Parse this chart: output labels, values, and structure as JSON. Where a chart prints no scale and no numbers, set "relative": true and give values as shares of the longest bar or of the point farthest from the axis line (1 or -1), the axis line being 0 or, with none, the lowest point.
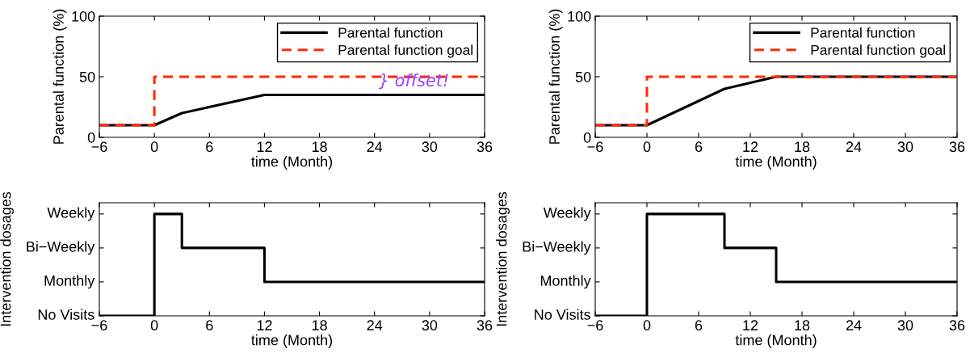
{
  "chart_data": [
    {
      "type": "line",
      "xlabel": "time (Month)",
      "ylabel": "Parental function (%)",
      "xlim": [
        -6,
        36
      ],
      "ylim": [
        0,
        100
      ],
      "xticks": [
        -6,
        0,
        6,
        12,
        18,
        24,
        30,
        36
      ],
      "yticks": [
        0,
        50,
        100
      ],
      "grid": false,
      "legend": "top right",
      "series": [
        {
          "name": "Parental function",
          "color": "#000000",
          "x": [
            -6,
            0,
            3,
            12,
            36
          ],
          "values": [
            10,
            10,
            20,
            35,
            35
          ],
          "line_style": "solid"
        },
        {
          "name": "Parental function goal",
          "type": "step",
          "color": "#ff2a0a",
          "x": [
            -6,
            0,
            36
          ],
          "values": [
            10,
            50,
            50
          ],
          "line_style": "dashed"
        }
      ],
      "annotations": [
        "} offset!"
      ]
    },
    {
      "type": "line",
      "xlabel": "time (Month)",
      "ylabel": "Parental function (%)",
      "xlim": [
        -6,
        36
      ],
      "ylim": [
        0,
        100
      ],
      "xticks": [
        -6,
        0,
        6,
        12,
        18,
        24,
        30,
        36
      ],
      "yticks": [
        0,
        50,
        100
      ],
      "grid": false,
      "legend": "top right",
      "series": [
        {
          "name": "Parental function",
          "color": "#000000",
          "x": [
            -6,
            0,
            9,
            15,
            36
          ],
          "values": [
            10,
            10,
            40,
            50,
            50
          ],
          "line_style": "solid"
        },
        {
          "name": "Parental function goal",
          "type": "step",
          "color": "#ff2a0a",
          "x": [
            -6,
            0,
            36
          ],
          "values": [
            10,
            50,
            50
          ],
          "line_style": "dashed"
        }
      ]
    },
    {
      "type": "step",
      "xlabel": "time (Month)",
      "ylabel": "Intervention dosages",
      "xlim": [
        -6,
        36
      ],
      "xticks": [
        -6,
        0,
        6,
        12,
        18,
        24,
        30,
        36
      ],
      "relative": true,
      "annotations": [
        "No Visits",
        "Monthly",
        "Bi−Weekly",
        "Weekly"
      ],
      "grid": false,
      "series": [
        {
          "color": "#000000",
          "x": [
            -6,
            0,
            3,
            12,
            36
          ],
          "values": [
            0,
            1,
            0.667,
            0.333,
            0.333
          ],
          "line_style": "solid"
        }
      ]
    },
    {
      "type": "step",
      "xlabel": "time (Month)",
      "ylabel": "Intervention dosages",
      "xlim": [
        -6,
        36
      ],
      "xticks": [
        -6,
        0,
        6,
        12,
        18,
        24,
        30,
        36
      ],
      "relative": true,
      "annotations": [
        "No Visits",
        "Monthly",
        "Bi−Weekly",
        "Weekly"
      ],
      "grid": false,
      "series": [
        {
          "color": "#000000",
          "x": [
            -6,
            0,
            9,
            15,
            36
          ],
          "values": [
            0,
            1,
            0.667,
            0.333,
            0.333
          ],
          "line_style": "solid"
        }
      ]
    }
  ]
}
